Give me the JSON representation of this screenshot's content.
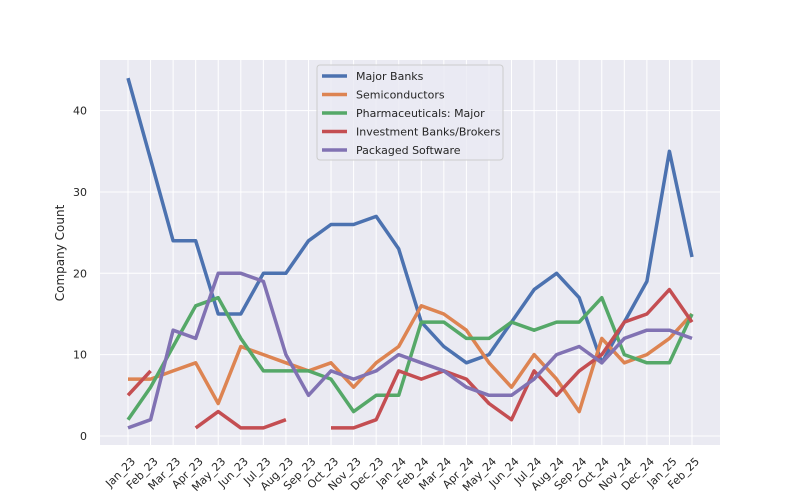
{
  "chart_data": {
    "type": "line",
    "title": "",
    "xlabel": "",
    "ylabel": "Company Count",
    "ylim": [
      -1,
      46
    ],
    "yticks": [
      0,
      10,
      20,
      30,
      40
    ],
    "grid": true,
    "legend_position": "top-center",
    "categories": [
      "Jan_23",
      "Feb_23",
      "Mar_23",
      "Apr_23",
      "May_23",
      "Jun_23",
      "Jul_23",
      "Aug_23",
      "Sep_23",
      "Oct_23",
      "Nov_23",
      "Dec_23",
      "Jan_24",
      "Feb_24",
      "Mar_24",
      "Apr_24",
      "May_24",
      "Jun_24",
      "Jul_24",
      "Aug_24",
      "Sep_24",
      "Oct_24",
      "Nov_24",
      "Dec_24",
      "Jan_25",
      "Feb_25"
    ],
    "series": [
      {
        "name": "Major Banks",
        "color": "#4c72b0",
        "values": [
          44,
          34,
          24,
          24,
          15,
          15,
          20,
          20,
          24,
          26,
          26,
          27,
          23,
          14,
          11,
          9,
          10,
          14,
          18,
          20,
          17,
          9,
          14,
          19,
          35,
          22
        ]
      },
      {
        "name": "Semiconductors",
        "color": "#dd8452",
        "values": [
          7,
          7,
          8,
          9,
          4,
          11,
          10,
          9,
          8,
          9,
          6,
          9,
          11,
          16,
          15,
          13,
          9,
          6,
          10,
          7,
          3,
          12,
          9,
          10,
          12,
          15
        ]
      },
      {
        "name": "Pharmaceuticals: Major",
        "color": "#55a868",
        "values": [
          2,
          6,
          11,
          16,
          17,
          12,
          8,
          8,
          8,
          7,
          3,
          5,
          5,
          14,
          14,
          12,
          12,
          14,
          13,
          14,
          14,
          17,
          10,
          9,
          9,
          15
        ]
      },
      {
        "name": "Investment Banks/Brokers",
        "color": "#c44e52",
        "values": [
          5,
          8,
          null,
          1,
          3,
          1,
          1,
          2,
          null,
          1,
          1,
          2,
          8,
          7,
          8,
          7,
          4,
          2,
          8,
          5,
          8,
          10,
          14,
          15,
          18,
          14
        ]
      },
      {
        "name": "Packaged Software",
        "color": "#8172b3",
        "values": [
          1,
          2,
          13,
          12,
          20,
          20,
          19,
          10,
          5,
          8,
          7,
          8,
          10,
          9,
          8,
          6,
          5,
          5,
          7,
          10,
          11,
          9,
          12,
          13,
          13,
          12
        ]
      }
    ]
  }
}
